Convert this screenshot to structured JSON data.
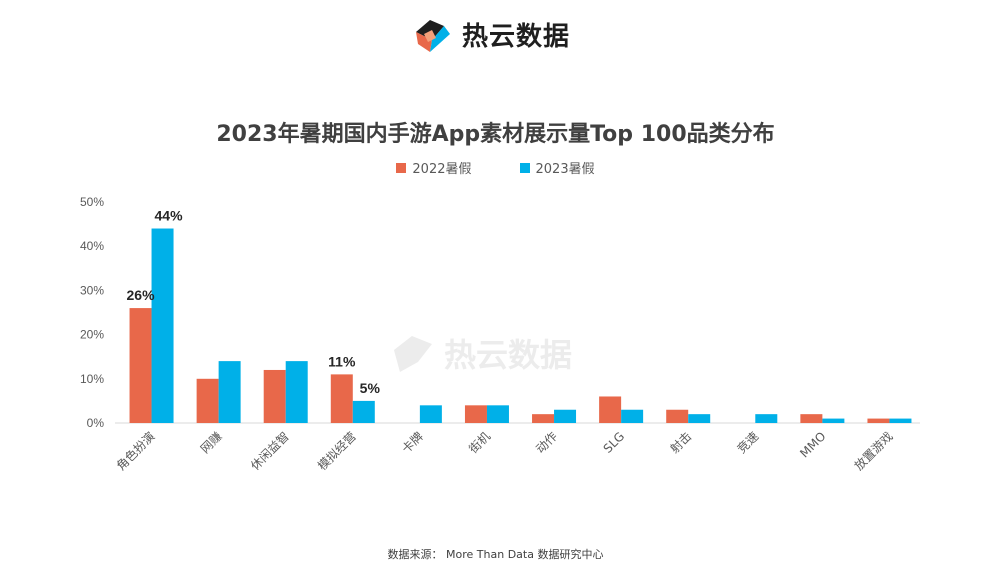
{
  "brand": {
    "name": "热云数据",
    "logo_icon": "reyun-cube-logo-icon"
  },
  "watermark": {
    "text": "热云数据"
  },
  "source": "数据来源：  More Than Data 数据研究中心",
  "colors": {
    "series_2022": "#E8684A",
    "series_2023": "#00B0E8",
    "axis": "#d9d9d9",
    "text": "#595959"
  },
  "chart_data": {
    "type": "bar",
    "title": "2023年暑期国内手游App素材展示量Top 100品类分布",
    "categories": [
      "角色扮演",
      "网赚",
      "休闲益智",
      "模拟经营",
      "卡牌",
      "街机",
      "动作",
      "SLG",
      "射击",
      "竞速",
      "MMO",
      "放置游戏"
    ],
    "series": [
      {
        "name": "2022暑假",
        "values": [
          26,
          10,
          12,
          11,
          0,
          4,
          2,
          6,
          3,
          0,
          2,
          1
        ]
      },
      {
        "name": "2023暑假",
        "values": [
          44,
          14,
          14,
          5,
          4,
          4,
          3,
          3,
          2,
          2,
          1,
          1
        ]
      }
    ],
    "data_labels": [
      {
        "series": 0,
        "index": 0,
        "text": "26%"
      },
      {
        "series": 1,
        "index": 0,
        "text": "44%"
      },
      {
        "series": 0,
        "index": 3,
        "text": "11%"
      },
      {
        "series": 1,
        "index": 3,
        "text": "5%"
      }
    ],
    "yticks": [
      "0%",
      "10%",
      "20%",
      "30%",
      "40%",
      "50%"
    ],
    "ylim": [
      0,
      50
    ],
    "grid": false,
    "legend_position": "top-center"
  }
}
